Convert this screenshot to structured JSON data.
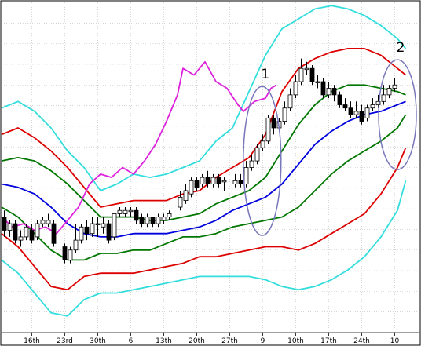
{
  "chart_data": {
    "type": "candlestick-with-bands",
    "x_tick_labels": [
      "16th",
      "23rd",
      "30th",
      "6",
      "13th",
      "20th",
      "27th",
      "9",
      "10th",
      "17th",
      "24th",
      "10"
    ],
    "ylim": [
      0,
      100
    ],
    "grid": true,
    "annotations": [
      {
        "label": "1",
        "center_x": 47.4,
        "center_y": 52
      },
      {
        "label": "2",
        "center_x": 72.0,
        "center_y": 66
      }
    ],
    "colors": {
      "upper_band_2": "#33dddd",
      "upper_band_1": "#dd0000",
      "upper_band_0": "#007700",
      "middle_line": "#0000dd",
      "lag_line": "#dd22dd",
      "ellipse": "#7777bb",
      "grid": "#bbbbbb"
    },
    "series": [
      {
        "key": "sigma_plus_2",
        "color_key": "upper_band_2",
        "x": [
          0,
          3,
          6,
          9,
          12,
          15,
          18,
          21,
          24,
          27,
          30,
          33,
          36,
          39,
          42,
          45,
          48,
          51,
          54,
          57,
          60,
          63,
          66,
          69,
          72,
          73.5
        ],
        "y": [
          68,
          70,
          67,
          62,
          55,
          50,
          43,
          45,
          48,
          47,
          48,
          50,
          52,
          58,
          62,
          73,
          84,
          92,
          95,
          98,
          99,
          98,
          96,
          93,
          89,
          86
        ]
      },
      {
        "key": "sigma_plus_1",
        "color_key": "upper_band_1",
        "x": [
          0,
          3,
          6,
          9,
          12,
          15,
          18,
          21,
          24,
          27,
          30,
          33,
          36,
          39,
          42,
          45,
          48,
          51,
          54,
          57,
          60,
          63,
          66,
          69,
          72,
          73.5
        ],
        "y": [
          60,
          62,
          59,
          55,
          50,
          44,
          38,
          39,
          40,
          40,
          40,
          42,
          43,
          47,
          50,
          53,
          60,
          73,
          80,
          83,
          85,
          86,
          86,
          84,
          80,
          78
        ]
      },
      {
        "key": "sigma_plus_0",
        "color_key": "upper_band_0",
        "x": [
          0,
          3,
          6,
          9,
          12,
          15,
          18,
          21,
          24,
          27,
          30,
          33,
          36,
          39,
          42,
          45,
          48,
          51,
          54,
          57,
          60,
          63,
          66,
          69,
          72,
          73.5
        ],
        "y": [
          52,
          53,
          52,
          49,
          45,
          40,
          35,
          35,
          35,
          34,
          34,
          35,
          36,
          39,
          41,
          43,
          47,
          55,
          63,
          69,
          73,
          75,
          75,
          74,
          73,
          72
        ]
      },
      {
        "key": "middle",
        "color_key": "middle_line",
        "x": [
          0,
          3,
          6,
          9,
          12,
          15,
          18,
          21,
          24,
          27,
          30,
          33,
          36,
          39,
          42,
          45,
          48,
          51,
          54,
          57,
          60,
          63,
          66,
          69,
          72,
          73.5
        ],
        "y": [
          45,
          44,
          42,
          38,
          33,
          30,
          29,
          29,
          30,
          30,
          30,
          31,
          32,
          34,
          37,
          39,
          41,
          45,
          51,
          57,
          61,
          64,
          66,
          67,
          69,
          70
        ]
      },
      {
        "key": "sigma_minus_1",
        "color_key": "upper_band_0",
        "x": [
          0,
          3,
          6,
          9,
          12,
          15,
          18,
          21,
          24,
          27,
          30,
          33,
          36,
          39,
          42,
          45,
          48,
          51,
          54,
          57,
          60,
          63,
          66,
          69,
          72,
          73.5
        ],
        "y": [
          38,
          35,
          30,
          25,
          22,
          22,
          24,
          24,
          25,
          25,
          27,
          29,
          29,
          30,
          32,
          33,
          34,
          35,
          38,
          43,
          48,
          52,
          55,
          58,
          62,
          66
        ]
      },
      {
        "key": "sigma_minus_2",
        "color_key": "upper_band_1",
        "x": [
          0,
          3,
          6,
          9,
          12,
          15,
          18,
          21,
          24,
          27,
          30,
          33,
          36,
          39,
          42,
          45,
          48,
          51,
          54,
          57,
          60,
          63,
          66,
          69,
          72,
          73.5
        ],
        "y": [
          30,
          26,
          20,
          14,
          13,
          17,
          18,
          18,
          18,
          19,
          20,
          21,
          23,
          23,
          24,
          25,
          26,
          26,
          25,
          27,
          30,
          33,
          36,
          42,
          50,
          56
        ]
      },
      {
        "key": "sigma_minus_3",
        "color_key": "upper_band_2",
        "x": [
          0,
          3,
          6,
          9,
          12,
          15,
          18,
          21,
          24,
          27,
          30,
          33,
          36,
          39,
          42,
          45,
          48,
          51,
          54,
          57,
          60,
          63,
          66,
          69,
          72,
          73.5
        ],
        "y": [
          22,
          18,
          12,
          6,
          5,
          10,
          12,
          12,
          13,
          14,
          15,
          16,
          17,
          17,
          17,
          17,
          16,
          14,
          13,
          14,
          16,
          19,
          23,
          29,
          37,
          46
        ]
      },
      {
        "key": "lagging",
        "color_key": "lag_line",
        "x": [
          0,
          2,
          4,
          6,
          8,
          10,
          12,
          14,
          16,
          18,
          20,
          22,
          24,
          26,
          28,
          30,
          32,
          33,
          35,
          37,
          39,
          41,
          43,
          44,
          46,
          48,
          49,
          50
        ],
        "y": [
          35,
          32,
          33,
          31,
          32,
          30,
          34,
          38,
          45,
          48,
          47,
          50,
          48,
          52,
          57,
          64,
          72,
          80,
          78,
          82,
          76,
          74,
          69,
          67,
          70,
          71,
          74,
          75
        ]
      }
    ],
    "candles": [
      {
        "x": 0.5,
        "o": 35,
        "c": 31,
        "h": 37,
        "l": 29
      },
      {
        "x": 1.5,
        "o": 31,
        "c": 33,
        "h": 34,
        "l": 29
      },
      {
        "x": 2.5,
        "o": 33,
        "c": 28,
        "h": 34,
        "l": 27
      },
      {
        "x": 3.5,
        "o": 28,
        "c": 29,
        "h": 31,
        "l": 26
      },
      {
        "x": 4.5,
        "o": 29,
        "c": 32,
        "h": 33,
        "l": 28
      },
      {
        "x": 5.5,
        "o": 31,
        "c": 28,
        "h": 33,
        "l": 27
      },
      {
        "x": 6.5,
        "o": 29,
        "c": 33,
        "h": 34,
        "l": 28
      },
      {
        "x": 7.5,
        "o": 33,
        "c": 34,
        "h": 35,
        "l": 32
      },
      {
        "x": 8.5,
        "o": 33,
        "c": 34,
        "h": 36,
        "l": 32
      },
      {
        "x": 9.5,
        "o": 33,
        "c": 27,
        "h": 34,
        "l": 26
      },
      {
        "x": 11.5,
        "o": 26,
        "c": 22,
        "h": 27,
        "l": 21
      },
      {
        "x": 12.5,
        "o": 22,
        "c": 25,
        "h": 26,
        "l": 21
      },
      {
        "x": 13.5,
        "o": 25,
        "c": 28,
        "h": 33,
        "l": 24
      },
      {
        "x": 14.5,
        "o": 28,
        "c": 32,
        "h": 33,
        "l": 27
      },
      {
        "x": 15.5,
        "o": 32,
        "c": 30,
        "h": 34,
        "l": 28
      },
      {
        "x": 16.5,
        "o": 30,
        "c": 33,
        "h": 35,
        "l": 29
      },
      {
        "x": 17.5,
        "o": 33,
        "c": 33,
        "h": 35,
        "l": 29
      },
      {
        "x": 18.5,
        "o": 32,
        "c": 33,
        "h": 35,
        "l": 30
      },
      {
        "x": 19.5,
        "o": 33,
        "c": 28,
        "h": 34,
        "l": 27
      },
      {
        "x": 20.5,
        "o": 29,
        "c": 36,
        "h": 36,
        "l": 28
      },
      {
        "x": 21.5,
        "o": 36,
        "c": 37,
        "h": 38,
        "l": 35
      },
      {
        "x": 22.5,
        "o": 36,
        "c": 37,
        "h": 38,
        "l": 35
      },
      {
        "x": 23.5,
        "o": 37,
        "c": 37,
        "h": 38,
        "l": 35
      },
      {
        "x": 24.5,
        "o": 37,
        "c": 34,
        "h": 38,
        "l": 33
      },
      {
        "x": 25.5,
        "o": 35,
        "c": 33,
        "h": 36,
        "l": 32
      },
      {
        "x": 26.5,
        "o": 33,
        "c": 35,
        "h": 36,
        "l": 32
      },
      {
        "x": 27.5,
        "o": 35,
        "c": 33,
        "h": 35,
        "l": 32
      },
      {
        "x": 28.5,
        "o": 33,
        "c": 35,
        "h": 36,
        "l": 32
      },
      {
        "x": 29.5,
        "o": 34,
        "c": 35,
        "h": 36,
        "l": 33
      },
      {
        "x": 30.5,
        "o": 35,
        "c": 36,
        "h": 37,
        "l": 34
      },
      {
        "x": 32.5,
        "o": 38,
        "c": 41,
        "h": 43,
        "l": 37
      },
      {
        "x": 33.5,
        "o": 40,
        "c": 43,
        "h": 45,
        "l": 39
      },
      {
        "x": 34.5,
        "o": 42,
        "c": 46,
        "h": 47,
        "l": 41
      },
      {
        "x": 35.5,
        "o": 46,
        "c": 44,
        "h": 47,
        "l": 43
      },
      {
        "x": 36.5,
        "o": 45,
        "c": 47,
        "h": 48,
        "l": 44
      },
      {
        "x": 37.5,
        "o": 47,
        "c": 45,
        "h": 49,
        "l": 44
      },
      {
        "x": 38.5,
        "o": 45,
        "c": 47,
        "h": 48,
        "l": 44
      },
      {
        "x": 39.5,
        "o": 47,
        "c": 45,
        "h": 48,
        "l": 44
      },
      {
        "x": 40.5,
        "o": 46,
        "c": 46,
        "h": 47,
        "l": 43
      },
      {
        "x": 42.5,
        "o": 45,
        "c": 46,
        "h": 48,
        "l": 44
      },
      {
        "x": 43.5,
        "o": 46,
        "c": 45,
        "h": 48,
        "l": 44
      },
      {
        "x": 44.5,
        "o": 45,
        "c": 50,
        "h": 52,
        "l": 44
      },
      {
        "x": 45.5,
        "o": 50,
        "c": 52,
        "h": 54,
        "l": 49
      },
      {
        "x": 46.5,
        "o": 52,
        "c": 56,
        "h": 57,
        "l": 51
      },
      {
        "x": 47.5,
        "o": 56,
        "c": 58,
        "h": 60,
        "l": 55
      },
      {
        "x": 48.5,
        "o": 58,
        "c": 65,
        "h": 66,
        "l": 57
      },
      {
        "x": 49.5,
        "o": 65,
        "c": 62,
        "h": 66,
        "l": 60
      },
      {
        "x": 50.5,
        "o": 62,
        "c": 64,
        "h": 65,
        "l": 61
      },
      {
        "x": 51.5,
        "o": 64,
        "c": 68,
        "h": 70,
        "l": 63
      },
      {
        "x": 52.5,
        "o": 68,
        "c": 72,
        "h": 74,
        "l": 67
      },
      {
        "x": 53.5,
        "o": 72,
        "c": 76,
        "h": 78,
        "l": 71
      },
      {
        "x": 54.5,
        "o": 76,
        "c": 80,
        "h": 83,
        "l": 75
      },
      {
        "x": 55.5,
        "o": 80,
        "c": 80,
        "h": 82,
        "l": 78
      },
      {
        "x": 56.5,
        "o": 80,
        "c": 76,
        "h": 81,
        "l": 75
      },
      {
        "x": 57.5,
        "o": 76,
        "c": 76,
        "h": 78,
        "l": 74
      },
      {
        "x": 58.5,
        "o": 76,
        "c": 72,
        "h": 77,
        "l": 71
      },
      {
        "x": 59.5,
        "o": 72,
        "c": 74,
        "h": 76,
        "l": 71
      },
      {
        "x": 60.5,
        "o": 74,
        "c": 72,
        "h": 75,
        "l": 70
      },
      {
        "x": 61.5,
        "o": 72,
        "c": 69,
        "h": 73,
        "l": 68
      },
      {
        "x": 62.5,
        "o": 69,
        "c": 68,
        "h": 71,
        "l": 67
      },
      {
        "x": 63.5,
        "o": 68,
        "c": 66,
        "h": 70,
        "l": 65
      },
      {
        "x": 64.5,
        "o": 66,
        "c": 67,
        "h": 70,
        "l": 65
      },
      {
        "x": 65.5,
        "o": 67,
        "c": 64,
        "h": 69,
        "l": 63
      },
      {
        "x": 66.5,
        "o": 65,
        "c": 68,
        "h": 69,
        "l": 64
      },
      {
        "x": 67.5,
        "o": 68,
        "c": 69,
        "h": 71,
        "l": 67
      },
      {
        "x": 68.5,
        "o": 69,
        "c": 70,
        "h": 72,
        "l": 68
      },
      {
        "x": 69.5,
        "o": 70,
        "c": 72,
        "h": 75,
        "l": 69
      },
      {
        "x": 70.5,
        "o": 72,
        "c": 74,
        "h": 75,
        "l": 71
      },
      {
        "x": 71.5,
        "o": 74,
        "c": 75,
        "h": 77,
        "l": 73
      }
    ]
  }
}
